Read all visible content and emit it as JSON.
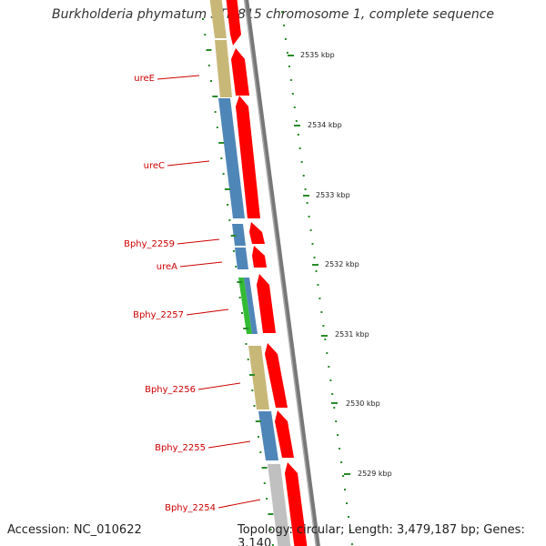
{
  "title": "Burkholderia phymatum STM815 chromosome 1, complete sequence",
  "footer": {
    "accession": "Accession: NC_010622",
    "topology": "Topology: circular; Length: 3,479,187 bp; Genes: 3,140"
  },
  "colors": {
    "gene_label": "#cc0000",
    "cds_arrow": "#ff0000",
    "tan": "#c8b878",
    "blue": "#4f86b8",
    "green": "#33bb33",
    "gray": "#c0c0c0",
    "backbone": "#888888",
    "scale_dots": "#2a8a2a"
  },
  "genes": [
    {
      "label": "ureE",
      "color": "tan"
    },
    {
      "label": "ureC",
      "color": "blue"
    },
    {
      "label": "Bphy_2259",
      "color": "blue"
    },
    {
      "label": "ureA",
      "color": "blue"
    },
    {
      "label": "Bphy_2257",
      "color": "green"
    },
    {
      "label": "Bphy_2256",
      "color": "tan"
    },
    {
      "label": "Bphy_2255",
      "color": "blue"
    },
    {
      "label": "Bphy_2254",
      "color": "gray"
    }
  ],
  "scale_labels": [
    "2535 kbp",
    "2534 kbp",
    "2533 kbp",
    "2532 kbp",
    "2531 kbp",
    "2530 kbp",
    "2529 kbp"
  ]
}
